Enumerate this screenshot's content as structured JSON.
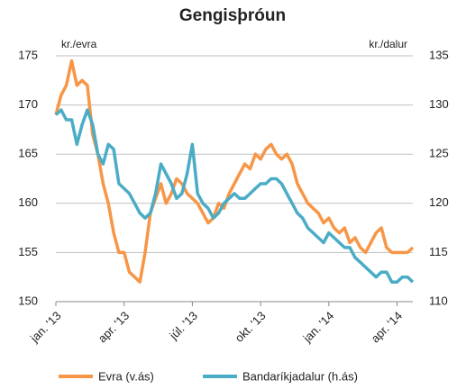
{
  "chart_data": {
    "type": "line",
    "title": "Gengisþróun",
    "y_label": "kr./evra",
    "y2_label": "kr./dalur",
    "categories": [
      "jan. '13",
      null,
      null,
      null,
      null,
      null,
      null,
      null,
      null,
      null,
      null,
      null,
      null,
      "apr. '13",
      null,
      null,
      null,
      null,
      null,
      null,
      null,
      null,
      null,
      null,
      null,
      null,
      "júl. '13",
      null,
      null,
      null,
      null,
      null,
      null,
      null,
      null,
      null,
      null,
      null,
      null,
      "okt. '13",
      null,
      null,
      null,
      null,
      null,
      null,
      null,
      null,
      null,
      null,
      null,
      null,
      "jan. '14",
      null,
      null,
      null,
      null,
      null,
      null,
      null,
      null,
      null,
      null,
      null,
      null,
      "apr. '14",
      null,
      null,
      null
    ],
    "series": [
      {
        "name": "Evra (v.ás)",
        "color": "#f79646",
        "axis": "y",
        "values": [
          169,
          171,
          172,
          174.5,
          172,
          172.5,
          172,
          167,
          165,
          162,
          160,
          157,
          155,
          155,
          153,
          152.5,
          152,
          155,
          159,
          160.5,
          162,
          160,
          161,
          162.5,
          162,
          161,
          160.5,
          160,
          159,
          158,
          158.5,
          160,
          159.5,
          161,
          162,
          163,
          164,
          163.5,
          165,
          164.5,
          165.5,
          166,
          165,
          164.5,
          165,
          164,
          162,
          161,
          160,
          159.5,
          159,
          158,
          158.5,
          157.5,
          157,
          157.5,
          156,
          156.5,
          155.5,
          155,
          156,
          157,
          157.5,
          155.5,
          155,
          155,
          155,
          155,
          155.5
        ]
      },
      {
        "name": "Bandaríkjadalur (h.ás)",
        "color": "#4bacc6",
        "axis": "y2",
        "values": [
          129,
          129.5,
          128.5,
          128.5,
          126,
          128,
          129.5,
          128,
          125,
          124,
          126,
          125.5,
          122,
          121.5,
          121,
          120,
          119,
          118.5,
          119,
          121,
          124,
          123,
          122,
          120.5,
          121,
          123,
          126,
          121,
          120,
          119.5,
          118.5,
          119,
          120,
          120.5,
          121,
          120.5,
          120.5,
          121,
          121.5,
          122,
          122,
          122.5,
          122.5,
          122,
          121,
          120,
          119,
          118.5,
          117.5,
          117,
          116.5,
          116,
          117,
          116.5,
          116,
          115.5,
          115.5,
          114.5,
          114,
          113.5,
          113,
          112.5,
          113,
          113,
          112,
          112,
          112.5,
          112.5,
          112
        ]
      }
    ],
    "ylim": [
      150,
      175
    ],
    "yticks": [
      150,
      155,
      160,
      165,
      170,
      175
    ],
    "y2lim": [
      110,
      135
    ],
    "y2ticks": [
      110,
      115,
      120,
      125,
      130,
      135
    ],
    "grid": true,
    "legend": "bottom"
  }
}
